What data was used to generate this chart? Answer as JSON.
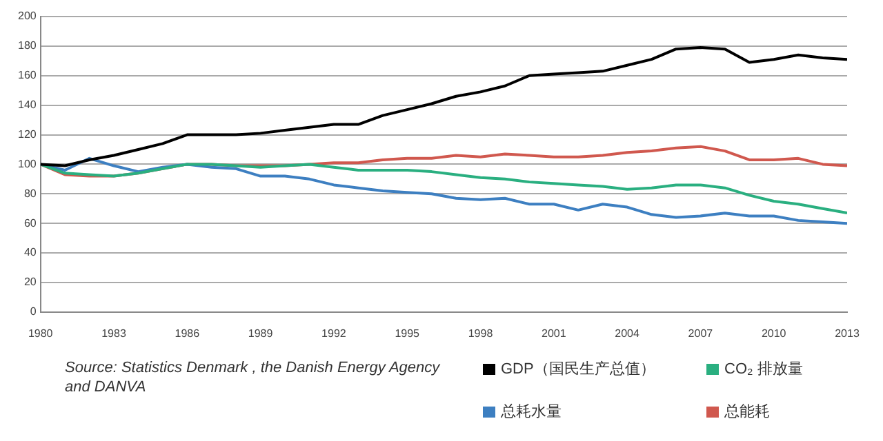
{
  "chart_data": {
    "type": "line",
    "x": [
      1980,
      1981,
      1982,
      1983,
      1984,
      1985,
      1986,
      1987,
      1988,
      1989,
      1990,
      1991,
      1992,
      1993,
      1994,
      1995,
      1996,
      1997,
      1998,
      1999,
      2000,
      2001,
      2002,
      2003,
      2004,
      2005,
      2006,
      2007,
      2008,
      2009,
      2010,
      2011,
      2012,
      2013
    ],
    "series": [
      {
        "name": "GDP（国民生产总值）",
        "color": "#000000",
        "values": [
          100,
          99,
          103,
          106,
          110,
          114,
          120,
          120,
          120,
          121,
          123,
          125,
          127,
          127,
          133,
          137,
          141,
          146,
          149,
          153,
          160,
          161,
          162,
          163,
          167,
          171,
          178,
          179,
          178,
          169,
          171,
          174,
          172,
          171
        ]
      },
      {
        "name": "CO₂ 排放量",
        "color": "#2aaf80",
        "values": [
          100,
          94,
          93,
          92,
          94,
          97,
          100,
          100,
          99,
          98,
          99,
          100,
          98,
          96,
          96,
          96,
          95,
          93,
          91,
          90,
          88,
          87,
          86,
          85,
          83,
          84,
          86,
          86,
          84,
          79,
          75,
          73,
          70,
          67
        ]
      },
      {
        "name": "总耗水量",
        "color": "#3d7fc1",
        "values": [
          100,
          96,
          104,
          99,
          95,
          98,
          100,
          98,
          97,
          92,
          92,
          90,
          86,
          84,
          82,
          81,
          80,
          77,
          76,
          77,
          73,
          73,
          69,
          73,
          71,
          66,
          64,
          65,
          67,
          65,
          65,
          62,
          61,
          60
        ]
      },
      {
        "name": "总能耗",
        "color": "#d0584e",
        "values": [
          100,
          93,
          92,
          92,
          94,
          97,
          100,
          100,
          99,
          99,
          99,
          100,
          101,
          101,
          103,
          104,
          104,
          106,
          105,
          107,
          106,
          105,
          105,
          106,
          108,
          109,
          111,
          112,
          109,
          103,
          103,
          104,
          100,
          99
        ]
      }
    ],
    "xlim": [
      1980,
      2013
    ],
    "xticks": [
      1980,
      1983,
      1986,
      1989,
      1992,
      1995,
      1998,
      2001,
      2004,
      2007,
      2010,
      2013
    ],
    "ylim": [
      0,
      200
    ],
    "yticks": [
      0,
      20,
      40,
      60,
      80,
      100,
      120,
      140,
      160,
      180,
      200
    ],
    "grid": "y",
    "legend": "bottom",
    "marker": "none",
    "line_style": "solid",
    "annotations": [
      "Source:  Statistics Denmark , the Danish Energy Agency and DANVA"
    ]
  }
}
